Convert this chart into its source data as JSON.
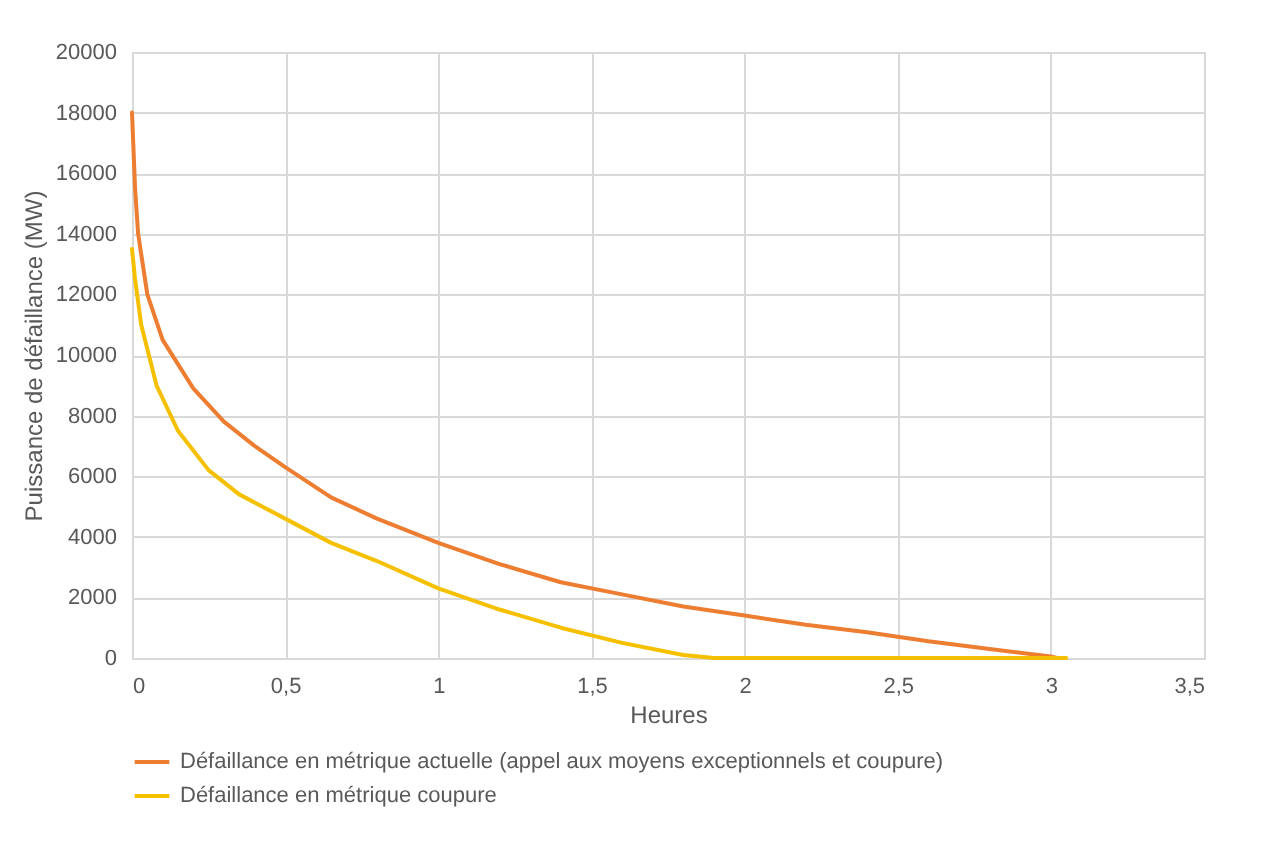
{
  "chart_data": {
    "type": "line",
    "xlabel": "Heures",
    "ylabel": "Puissance de défaillance (MW)",
    "xlim": [
      0,
      3.5
    ],
    "xticks": [
      0,
      {
        "value": 0.5,
        "label": "0,5"
      },
      1,
      {
        "value": 1.5,
        "label": "1,5"
      },
      2,
      {
        "value": 2.5,
        "label": "2,5"
      },
      3,
      {
        "value": 3.5,
        "label": "3,5"
      }
    ],
    "ylim": [
      0,
      20000
    ],
    "yticks": [
      0,
      2000,
      4000,
      6000,
      8000,
      10000,
      12000,
      14000,
      16000,
      18000,
      20000
    ],
    "grid": true,
    "legend": "bottom",
    "marker": "none",
    "line_style": "solid",
    "series": [
      {
        "name": "Défaillance en métrique actuelle (appel aux moyens exceptionnels et coupure)",
        "color": "#ed7d31",
        "x": [
          0,
          0.01,
          0.02,
          0.05,
          0.1,
          0.2,
          0.3,
          0.4,
          0.5,
          0.65,
          0.8,
          1.0,
          1.2,
          1.4,
          1.6,
          1.8,
          2.0,
          2.2,
          2.4,
          2.6,
          2.8,
          3.0,
          3.02
        ],
        "values": [
          18000,
          15500,
          14000,
          12000,
          10500,
          8900,
          7800,
          7000,
          6300,
          5300,
          4600,
          3800,
          3100,
          2500,
          2100,
          1700,
          1400,
          1100,
          850,
          550,
          300,
          50,
          0
        ]
      },
      {
        "name": "Défaillance en métrique coupure",
        "color": "#f5c000",
        "x": [
          0,
          0.01,
          0.03,
          0.08,
          0.15,
          0.25,
          0.35,
          0.5,
          0.65,
          0.8,
          1.0,
          1.2,
          1.4,
          1.6,
          1.8,
          1.9,
          2.5,
          3.05
        ],
        "values": [
          13500,
          12500,
          11000,
          9000,
          7500,
          6200,
          5400,
          4600,
          3800,
          3200,
          2300,
          1600,
          1000,
          500,
          100,
          0,
          0,
          0
        ]
      }
    ]
  }
}
